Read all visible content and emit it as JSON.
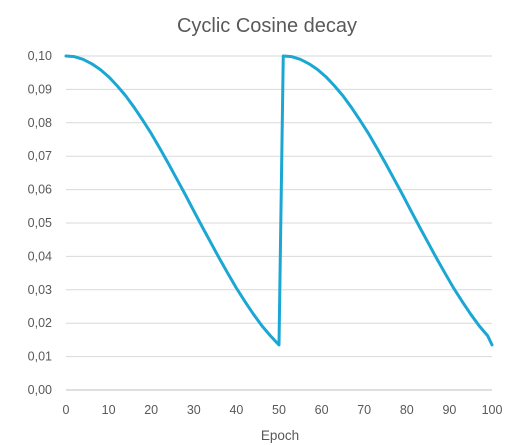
{
  "chart_data": {
    "type": "line",
    "title": "Cyclic Cosine decay",
    "xlabel": "Epoch",
    "ylabel": "",
    "xlim": [
      0,
      100
    ],
    "ylim": [
      0,
      0.1
    ],
    "x_ticks": [
      "0",
      "10",
      "20",
      "30",
      "40",
      "50",
      "60",
      "70",
      "80",
      "90",
      "100"
    ],
    "y_ticks": [
      "0,00",
      "0,01",
      "0,02",
      "0,03",
      "0,04",
      "0,05",
      "0,06",
      "0,07",
      "0,08",
      "0,09",
      "0,10"
    ],
    "grid": true,
    "series": [
      {
        "color": "#1aa7d3",
        "x": [
          0,
          2,
          4,
          6,
          8,
          10,
          12,
          14,
          16,
          18,
          20,
          22,
          24,
          26,
          28,
          30,
          32,
          34,
          36,
          38,
          40,
          42,
          44,
          46,
          48,
          50,
          51,
          53,
          55,
          57,
          59,
          61,
          63,
          65,
          67,
          69,
          71,
          73,
          75,
          77,
          79,
          81,
          83,
          85,
          87,
          89,
          91,
          93,
          95,
          97,
          99,
          100
        ],
        "y": [
          0.1,
          0.0998,
          0.099,
          0.0977,
          0.096,
          0.0938,
          0.0911,
          0.0881,
          0.0846,
          0.0808,
          0.0768,
          0.0724,
          0.0679,
          0.0632,
          0.0585,
          0.0536,
          0.0488,
          0.0441,
          0.0394,
          0.0349,
          0.0305,
          0.0265,
          0.0227,
          0.0192,
          0.0162,
          0.0135,
          0.1,
          0.0998,
          0.099,
          0.0977,
          0.096,
          0.0938,
          0.0911,
          0.0881,
          0.0846,
          0.0808,
          0.0768,
          0.0724,
          0.0679,
          0.0632,
          0.0585,
          0.0536,
          0.0488,
          0.0441,
          0.0394,
          0.0349,
          0.0305,
          0.0265,
          0.0227,
          0.0192,
          0.0162,
          0.0135
        ]
      }
    ]
  }
}
